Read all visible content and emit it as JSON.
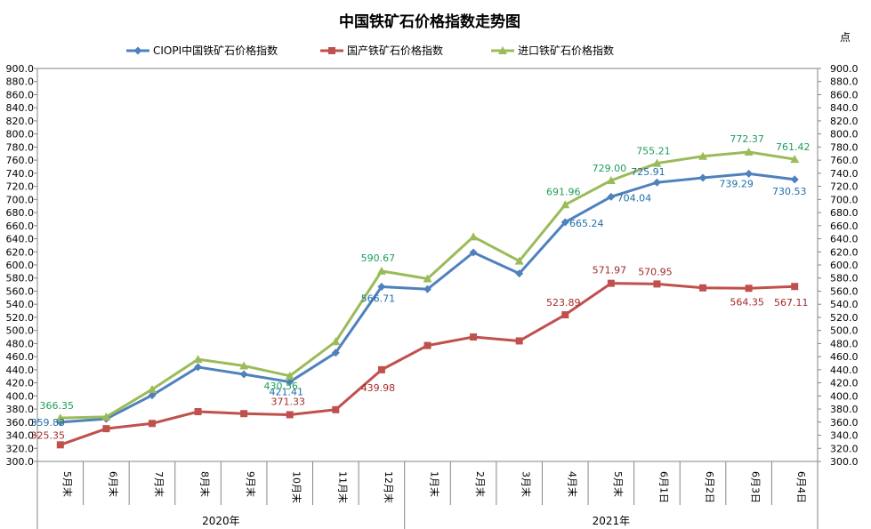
{
  "chart_data": {
    "type": "line",
    "title": "中国铁矿石价格指数走势图",
    "unit_label": "点",
    "ylim": [
      300,
      900
    ],
    "ystep": 20,
    "legend_position": "top",
    "grid": false,
    "categories": [
      "5月末",
      "6月末",
      "7月末",
      "8月末",
      "9月末",
      "10月末",
      "11月末",
      "12月末",
      "1月末",
      "2月末",
      "3月末",
      "4月末",
      "5月末",
      "6月1日",
      "6月2日",
      "6月3日",
      "6月4日"
    ],
    "year_groups": [
      {
        "label": "2020年",
        "start": 0,
        "end": 7
      },
      {
        "label": "2021年",
        "start": 8,
        "end": 16
      }
    ],
    "series": [
      {
        "name": "CIOPI中国铁矿石价格指数",
        "color": "#4F81BD",
        "label_color": "#1F6FA8",
        "marker": "diamond",
        "values": [
          359.83,
          365,
          401,
          444,
          433,
          421.41,
          466,
          566.71,
          563,
          619,
          587,
          665.24,
          704.04,
          725.91,
          733,
          739.29,
          730.53
        ],
        "labels": [
          {
            "index": 0,
            "text": "359.83"
          },
          {
            "index": 5,
            "text": "421.41"
          },
          {
            "index": 7,
            "text": "566.71"
          },
          {
            "index": 11,
            "text": "665.24"
          },
          {
            "index": 12,
            "text": "704.04"
          },
          {
            "index": 13,
            "text": "725.91"
          },
          {
            "index": 15,
            "text": "739.29"
          },
          {
            "index": 16,
            "text": "730.53"
          }
        ]
      },
      {
        "name": "国产铁矿石价格指数",
        "color": "#C0504D",
        "label_color": "#A52A2A",
        "marker": "square",
        "values": [
          325.35,
          350,
          358,
          376,
          373,
          371.33,
          379,
          439.98,
          477,
          490,
          484,
          523.89,
          571.97,
          570.95,
          565,
          564.35,
          567.11
        ],
        "labels": [
          {
            "index": 0,
            "text": "325.35"
          },
          {
            "index": 5,
            "text": "371.33"
          },
          {
            "index": 7,
            "text": "439.98"
          },
          {
            "index": 11,
            "text": "523.89"
          },
          {
            "index": 12,
            "text": "571.97"
          },
          {
            "index": 13,
            "text": "570.95"
          },
          {
            "index": 15,
            "text": "564.35"
          },
          {
            "index": 16,
            "text": "567.11"
          }
        ]
      },
      {
        "name": "进口铁矿石价格指数",
        "color": "#9BBB59",
        "label_color": "#1E9E5A",
        "marker": "triangle",
        "values": [
          366.35,
          368,
          410,
          456,
          446,
          430.56,
          483,
          590.67,
          579,
          643,
          606,
          691.96,
          729.0,
          755.21,
          766,
          772.37,
          761.42
        ],
        "labels": [
          {
            "index": 0,
            "text": "366.35"
          },
          {
            "index": 5,
            "text": "430.56"
          },
          {
            "index": 7,
            "text": "590.67"
          },
          {
            "index": 11,
            "text": "691.96"
          },
          {
            "index": 12,
            "text": "729.00"
          },
          {
            "index": 13,
            "text": "755.21"
          },
          {
            "index": 15,
            "text": "772.37"
          },
          {
            "index": 16,
            "text": "761.42"
          }
        ]
      }
    ]
  }
}
